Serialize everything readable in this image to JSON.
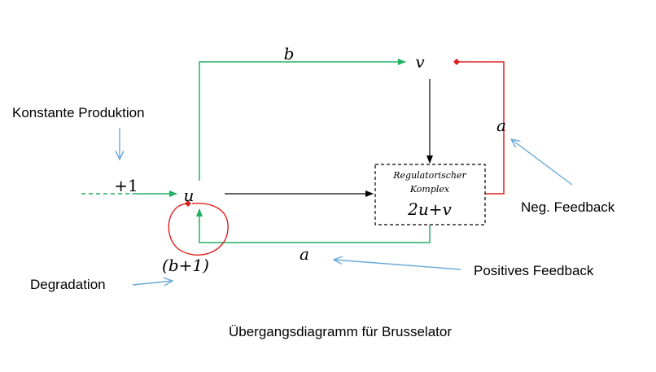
{
  "nodes": {
    "u": "u",
    "v": "v",
    "complex_line1": "Regulatorischer",
    "complex_line2": "Komplex",
    "complex_formula": "2u+v"
  },
  "edge_labels": {
    "b_top": "b",
    "plus_one": "+1",
    "a_bottom": "a",
    "a_right": "a",
    "degradation_rate": "(b+1)"
  },
  "annotations": {
    "konstante_produktion": "Konstante Produktion",
    "degradation": "Degradation",
    "positives_feedback": "Positives Feedback",
    "neg_feedback": "Neg. Feedback"
  },
  "caption": "Übergangsdiagramm für Brusselator",
  "colors": {
    "positive": "#22b060",
    "negative": "#e02020",
    "annotation": "#6aaad8",
    "neutral": "#000000"
  }
}
